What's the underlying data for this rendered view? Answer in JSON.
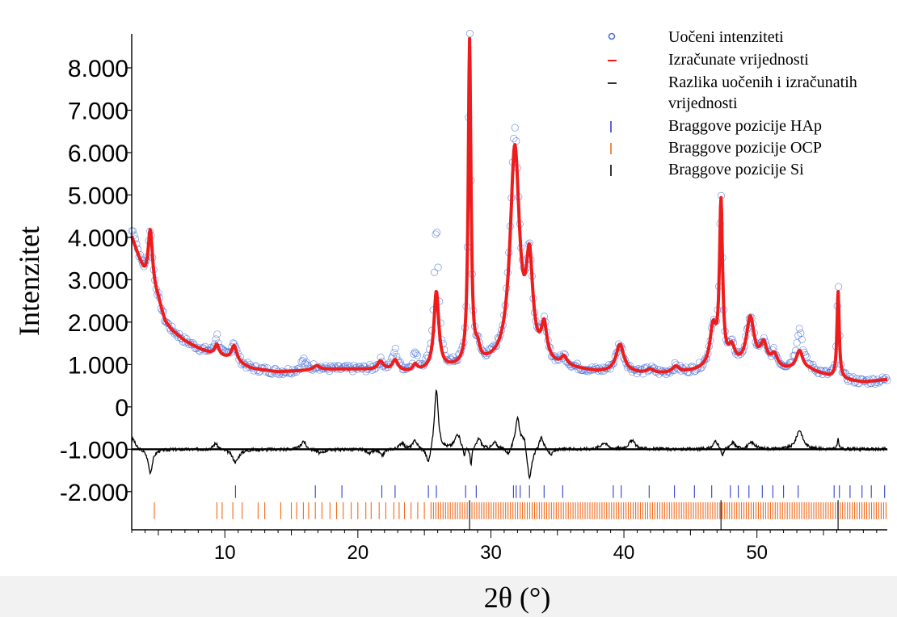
{
  "chart_data": {
    "type": "line",
    "xlabel": "2θ (°)",
    "ylabel": "Intenzitet",
    "xlim": [
      3,
      59.8
    ],
    "ylim": [
      -2900,
      8800
    ],
    "x_ticks": [
      10,
      20,
      30,
      40,
      50
    ],
    "y_ticks": [
      {
        "value": 8000,
        "label": "8.000"
      },
      {
        "value": 7000,
        "label": "7.000"
      },
      {
        "value": 6000,
        "label": "6.000"
      },
      {
        "value": 5000,
        "label": "5.000"
      },
      {
        "value": 4000,
        "label": "4.000"
      },
      {
        "value": 3000,
        "label": "3.000"
      },
      {
        "value": 2000,
        "label": "2.000"
      },
      {
        "value": 1000,
        "label": "1.000"
      },
      {
        "value": 0,
        "label": "0"
      },
      {
        "value": -1000,
        "label": "-1.000"
      },
      {
        "value": -2000,
        "label": "-2.000"
      }
    ],
    "legend": {
      "position": "top-right",
      "entries": [
        {
          "label": "Uočeni intenziteti",
          "marker": "circle",
          "color": "#4a72d8"
        },
        {
          "label": "Izračunate vrijednosti",
          "marker": "line",
          "color": "#ee1c1c"
        },
        {
          "label": "Razlika uočenih i izračunatih vrijednosti",
          "marker": "line",
          "color": "#000000"
        },
        {
          "label": "Braggove pozicije HAp",
          "marker": "bar",
          "color": "#2f3fd0"
        },
        {
          "label": "Braggove pozicije OCP",
          "marker": "bar",
          "color": "#f26a1b"
        },
        {
          "label": "Braggove pozicije Si",
          "marker": "bar",
          "color": "#000000"
        }
      ]
    },
    "calculated": {
      "name": "Izračunate vrijednosti",
      "color": "#ee1c1c",
      "background_x": [
        3,
        4,
        5,
        5.5,
        6,
        7,
        8,
        9,
        10,
        11,
        12,
        14,
        16,
        18,
        20,
        22,
        24,
        26,
        27,
        28,
        30,
        32,
        34,
        36,
        38,
        40,
        42,
        44,
        46,
        48,
        50,
        52,
        54,
        56,
        58,
        59.8
      ],
      "background_y": [
        4000,
        3050,
        2500,
        2000,
        1800,
        1550,
        1380,
        1250,
        1150,
        1020,
        900,
        820,
        850,
        880,
        880,
        850,
        800,
        850,
        880,
        900,
        950,
        960,
        930,
        880,
        800,
        800,
        760,
        780,
        850,
        900,
        900,
        850,
        850,
        650,
        580,
        640
      ],
      "peaks": [
        {
          "x": 4.4,
          "h": 1350,
          "w": 0.2
        },
        {
          "x": 9.4,
          "h": 250,
          "w": 0.2
        },
        {
          "x": 10.7,
          "h": 380,
          "w": 0.25
        },
        {
          "x": 16.9,
          "h": 100,
          "w": 0.3
        },
        {
          "x": 21.7,
          "h": 200,
          "w": 0.25
        },
        {
          "x": 22.8,
          "h": 250,
          "w": 0.25
        },
        {
          "x": 24.3,
          "h": 150,
          "w": 0.2
        },
        {
          "x": 25.9,
          "h": 1830,
          "w": 0.22
        },
        {
          "x": 28.4,
          "h": 7650,
          "w": 0.12
        },
        {
          "x": 29.0,
          "h": 300,
          "w": 0.2
        },
        {
          "x": 31.8,
          "h": 5050,
          "w": 0.42
        },
        {
          "x": 32.9,
          "h": 2200,
          "w": 0.3
        },
        {
          "x": 34.0,
          "h": 800,
          "w": 0.25
        },
        {
          "x": 35.5,
          "h": 200,
          "w": 0.25
        },
        {
          "x": 39.7,
          "h": 650,
          "w": 0.35
        },
        {
          "x": 42.0,
          "h": 100,
          "w": 0.3
        },
        {
          "x": 43.9,
          "h": 150,
          "w": 0.3
        },
        {
          "x": 46.7,
          "h": 930,
          "w": 0.28
        },
        {
          "x": 47.3,
          "h": 3800,
          "w": 0.14
        },
        {
          "x": 48.1,
          "h": 400,
          "w": 0.3
        },
        {
          "x": 49.5,
          "h": 1150,
          "w": 0.35
        },
        {
          "x": 50.5,
          "h": 500,
          "w": 0.3
        },
        {
          "x": 51.3,
          "h": 300,
          "w": 0.3
        },
        {
          "x": 53.2,
          "h": 450,
          "w": 0.3
        },
        {
          "x": 56.1,
          "h": 2070,
          "w": 0.1
        }
      ]
    },
    "observed": {
      "name": "Uočeni intenziteti",
      "color": "#4a72d8",
      "extra_peaks": [
        {
          "x": 3.2,
          "h": 250,
          "w": 0.2
        },
        {
          "x": 9.4,
          "h": 200,
          "w": 0.2
        },
        {
          "x": 10.6,
          "h": 100,
          "w": 0.2
        },
        {
          "x": 15.9,
          "h": 250,
          "w": 0.2
        },
        {
          "x": 22.8,
          "h": 200,
          "w": 0.2
        },
        {
          "x": 24.3,
          "h": 250,
          "w": 0.2
        },
        {
          "x": 25.9,
          "h": 1550,
          "w": 0.18
        },
        {
          "x": 28.4,
          "h": 250,
          "w": 0.1
        },
        {
          "x": 31.8,
          "h": 400,
          "w": 0.4
        },
        {
          "x": 47.3,
          "h": 100,
          "w": 0.12
        },
        {
          "x": 53.2,
          "h": 500,
          "w": 0.3
        },
        {
          "x": 56.1,
          "h": 250,
          "w": 0.1
        }
      ]
    },
    "difference": {
      "name": "Razlika uočenih i izračunatih vrijednosti",
      "color": "#000000",
      "baseline": -1000,
      "features": [
        {
          "x": 3.1,
          "h": 250,
          "w": 0.2
        },
        {
          "x": 4.4,
          "h": -550,
          "w": 0.2
        },
        {
          "x": 9.3,
          "h": 150,
          "w": 0.2
        },
        {
          "x": 10.8,
          "h": -300,
          "w": 0.3
        },
        {
          "x": 15.9,
          "h": 200,
          "w": 0.2
        },
        {
          "x": 17.2,
          "h": -100,
          "w": 0.3
        },
        {
          "x": 20.9,
          "h": -100,
          "w": 0.2
        },
        {
          "x": 21.8,
          "h": -150,
          "w": 0.2
        },
        {
          "x": 23.3,
          "h": 150,
          "w": 0.2
        },
        {
          "x": 24.3,
          "h": 200,
          "w": 0.2
        },
        {
          "x": 25.3,
          "h": -400,
          "w": 0.2
        },
        {
          "x": 25.9,
          "h": 1450,
          "w": 0.17
        },
        {
          "x": 27.5,
          "h": 350,
          "w": 0.25
        },
        {
          "x": 28.0,
          "h": -200,
          "w": 0.1
        },
        {
          "x": 28.5,
          "h": -400,
          "w": 0.08
        },
        {
          "x": 29.1,
          "h": 250,
          "w": 0.2
        },
        {
          "x": 30.3,
          "h": 150,
          "w": 0.2
        },
        {
          "x": 31.3,
          "h": -150,
          "w": 0.2
        },
        {
          "x": 32.0,
          "h": 750,
          "w": 0.2
        },
        {
          "x": 32.5,
          "h": 300,
          "w": 0.2
        },
        {
          "x": 32.9,
          "h": -800,
          "w": 0.2
        },
        {
          "x": 33.8,
          "h": 300,
          "w": 0.2
        },
        {
          "x": 34.5,
          "h": -150,
          "w": 0.2
        },
        {
          "x": 38.5,
          "h": 150,
          "w": 0.3
        },
        {
          "x": 40.6,
          "h": 200,
          "w": 0.3
        },
        {
          "x": 46.9,
          "h": 200,
          "w": 0.2
        },
        {
          "x": 47.4,
          "h": -200,
          "w": 0.1
        },
        {
          "x": 48.2,
          "h": 150,
          "w": 0.2
        },
        {
          "x": 49.6,
          "h": 150,
          "w": 0.3
        },
        {
          "x": 53.2,
          "h": 450,
          "w": 0.3
        },
        {
          "x": 56.1,
          "h": 250,
          "w": 0.06
        }
      ]
    },
    "bragg": {
      "HAp": {
        "color": "#2f3fd0",
        "y_range": [
          -2150,
          -1850
        ],
        "positions": [
          10.8,
          16.8,
          18.8,
          21.8,
          22.8,
          25.3,
          25.9,
          28.1,
          28.9,
          31.7,
          31.9,
          32.2,
          32.9,
          34.0,
          35.4,
          39.2,
          39.8,
          41.9,
          43.8,
          45.3,
          46.6,
          48.0,
          48.6,
          49.4,
          50.4,
          51.2,
          52.0,
          53.1,
          55.8,
          56.2,
          57.0,
          57.9,
          58.6,
          59.6
        ]
      },
      "OCP": {
        "color": "#f26a1b",
        "y_range": [
          -2650,
          -2250
        ],
        "positions": [
          4.7,
          9.4,
          9.8,
          10.6,
          11.3,
          12.5,
          13.0,
          14.2,
          15.0,
          15.4,
          15.9,
          16.3,
          16.8,
          17.3,
          17.9,
          18.4,
          18.9,
          19.5,
          20.0,
          20.6,
          21.0,
          21.6,
          22.1,
          22.7,
          23.1,
          23.5,
          24.0,
          24.5,
          25.0
        ],
        "dense_range": [
          25.5,
          59.7
        ],
        "dense_count": 190
      },
      "Si": {
        "color": "#000000",
        "y_range": [
          -2900,
          -2200
        ],
        "positions": [
          28.4,
          47.3,
          56.1
        ]
      }
    }
  }
}
